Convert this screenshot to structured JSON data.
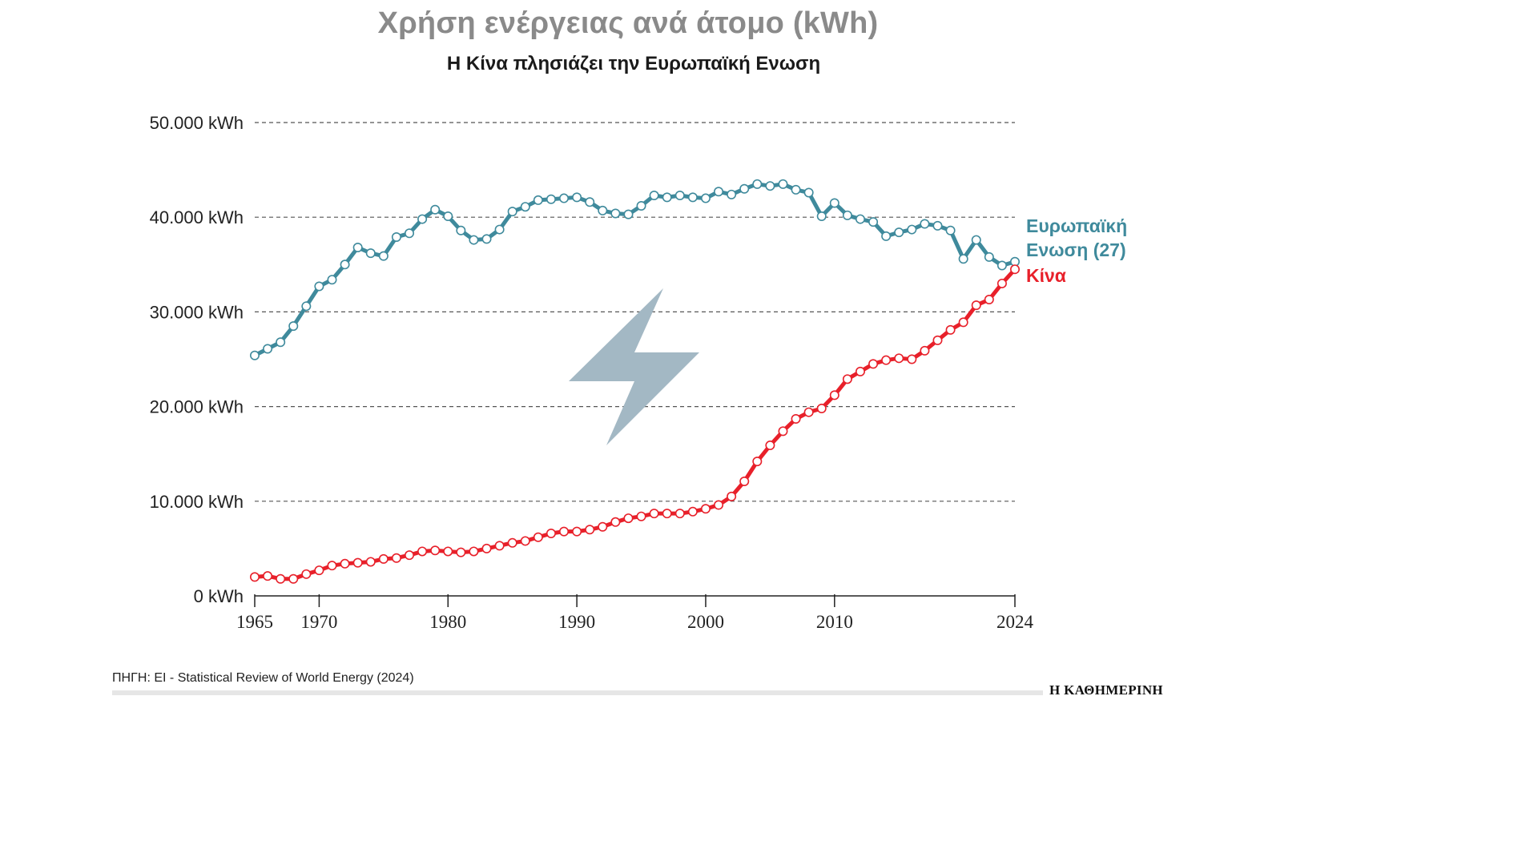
{
  "title": "Χρήση ενέργειας ανά άτομο (kWh)",
  "subtitle": "Η Κίνα πλησιάζει την Ευρωπαϊκή Ενωση",
  "source": "ΠΗΓΗ: EI - Statistical Review of World Energy (2024)",
  "brand": "Η ΚΑΘΗΜΕΡΙΝΗ",
  "icon": "lightning-bolt-icon",
  "colors": {
    "eu": "#3f8a9c",
    "china": "#e8202a",
    "bolt": "#a3b8c4",
    "grid": "#555555"
  },
  "chart_data": {
    "type": "line",
    "title": "Χρήση ενέργειας ανά άτομο (kWh)",
    "ylim": [
      0,
      50000
    ],
    "xlim": [
      1965,
      2024
    ],
    "y_ticks": [
      {
        "value": 0,
        "label": "0 kWh"
      },
      {
        "value": 10000,
        "label": "10.000 kWh"
      },
      {
        "value": 20000,
        "label": "20.000 kWh"
      },
      {
        "value": 30000,
        "label": "30.000 kWh"
      },
      {
        "value": 40000,
        "label": "40.000 kWh"
      },
      {
        "value": 50000,
        "label": "50.000 kWh"
      }
    ],
    "x_ticks": [
      {
        "value": 1965,
        "label": "1965"
      },
      {
        "value": 1970,
        "label": "1970"
      },
      {
        "value": 1980,
        "label": "1980"
      },
      {
        "value": 1990,
        "label": "1990"
      },
      {
        "value": 2000,
        "label": "2000"
      },
      {
        "value": 2010,
        "label": "2010"
      },
      {
        "value": 2024,
        "label": "2024"
      }
    ],
    "x": [
      1965,
      1966,
      1967,
      1968,
      1969,
      1970,
      1971,
      1972,
      1973,
      1974,
      1975,
      1976,
      1977,
      1978,
      1979,
      1980,
      1981,
      1982,
      1983,
      1984,
      1985,
      1986,
      1987,
      1988,
      1989,
      1990,
      1991,
      1992,
      1993,
      1994,
      1995,
      1996,
      1997,
      1998,
      1999,
      2000,
      2001,
      2002,
      2003,
      2004,
      2005,
      2006,
      2007,
      2008,
      2009,
      2010,
      2011,
      2012,
      2013,
      2014,
      2015,
      2016,
      2017,
      2018,
      2019,
      2020,
      2021,
      2022,
      2023,
      2024
    ],
    "series": [
      {
        "name": "Ευρωπαϊκή Ενωση (27)",
        "label_lines": [
          "Ευρωπαϊκή",
          "Ενωση (27)"
        ],
        "color": "#3f8a9c",
        "values": [
          25400,
          26100,
          26800,
          28500,
          30600,
          32700,
          33400,
          35000,
          36800,
          36200,
          35900,
          37900,
          38300,
          39800,
          40800,
          40100,
          38600,
          37600,
          37700,
          38700,
          40600,
          41100,
          41800,
          41900,
          42000,
          42100,
          41600,
          40700,
          40400,
          40300,
          41200,
          42300,
          42100,
          42300,
          42100,
          42000,
          42700,
          42400,
          43000,
          43500,
          43300,
          43500,
          42900,
          42600,
          40100,
          41500,
          40200,
          39800,
          39500,
          38000,
          38400,
          38700,
          39300,
          39100,
          38600,
          35600,
          37600,
          35800,
          34900,
          35300
        ]
      },
      {
        "name": "Κίνα",
        "label_lines": [
          "Κίνα"
        ],
        "color": "#e8202a",
        "values": [
          2000,
          2100,
          1800,
          1800,
          2300,
          2700,
          3200,
          3400,
          3500,
          3600,
          3900,
          4000,
          4300,
          4700,
          4800,
          4700,
          4600,
          4700,
          5000,
          5300,
          5600,
          5800,
          6200,
          6600,
          6800,
          6800,
          7000,
          7300,
          7800,
          8200,
          8400,
          8700,
          8700,
          8700,
          8900,
          9200,
          9600,
          10500,
          12100,
          14200,
          15900,
          17400,
          18700,
          19400,
          19800,
          21200,
          22900,
          23700,
          24500,
          24900,
          25100,
          25000,
          25900,
          27000,
          28100,
          28900,
          30700,
          31300,
          33000,
          34500
        ]
      }
    ]
  }
}
